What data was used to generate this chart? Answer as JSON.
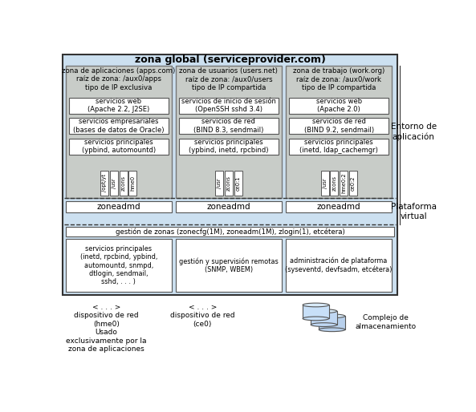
{
  "title": "zona global (serviceprovider.com)",
  "bg_light_blue": "#cce0f0",
  "bg_zone_gray": "#c8ccc8",
  "bg_white": "#ffffff",
  "edge_dark": "#444444",
  "edge_gray": "#888888",
  "zone1_title": "zona de aplicaciones (apps.com)\nraíz de zona: /aux0/apps\ntipo de IP exclusiva",
  "zone2_title": "zona de usuarios (users.net)\nraíz de zona: /aux0/users\ntipo de IP compartida",
  "zone3_title": "zona de trabajo (work.org)\nraíz de zona: /aux0/work\ntipo de IP compartida",
  "zone1_boxes": [
    "servicios web\n(Apache 2.2, J2SE)",
    "servicios empresariales\n(bases de datos de Oracle)",
    "servicios principales\n(ypbind, automountd)"
  ],
  "zone2_boxes": [
    "servicios de inicio de sesión\n(OpenSSH sshd 3.4)",
    "servicios de red\n(BIND 8.3, sendmail)",
    "servicios principales\n(ypbind, inetd, rpcbind)"
  ],
  "zone3_boxes": [
    "servicios web\n(Apache 2.0)",
    "servicios de red\n(BIND 9.2, sendmail)",
    "servicios principales\n(inetd, ldap_cachemgr)"
  ],
  "zone1_tabs": [
    "/opt/yt",
    "/usr",
    "zcons",
    "hme0"
  ],
  "zone2_tabs": [
    "/usr",
    "zcons",
    "ce0:1"
  ],
  "zone3_tabs": [
    "/usr",
    "zcons",
    "hme0:2",
    "ce0:2"
  ],
  "mgmt_bar": "gestión de zonas (zonecfg(1M), zoneadm(1M), zlogin(1), etcétera)",
  "global_box1": "servicios principales\n(inetd, rpcbind, ypbind,\nautomountd, snmpd,\ndtlogin, sendmail,\nsshd, . . . )",
  "global_box2": "gestión y supervisión remotas\n(SNMP, WBEM)",
  "global_box3": "administración de plataforma\n(syseventd, devfsadm, etcétera)",
  "label_right1": "Entorno de\naplicación",
  "label_right2": "Plataforma\nvirtual",
  "net1_label": "< . . . >\ndispositivo de red\n(hme0)\nUsado\nexclusivamente por la\nzona de aplicaciones",
  "net2_label": "< . . . >\ndispositivo de red\n(ce0)",
  "storage_label": "Complejo de\nalmacenamiento"
}
